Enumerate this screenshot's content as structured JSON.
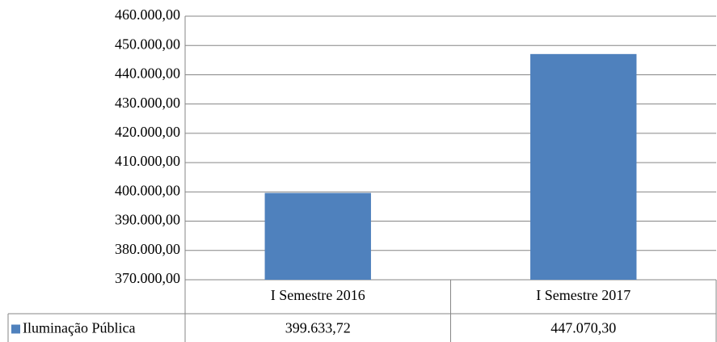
{
  "chart_data": {
    "type": "bar",
    "categories": [
      "I Semestre 2016",
      "I Semestre 2017"
    ],
    "series": [
      {
        "name": "Iluminação Pública",
        "color": "#4f81bd",
        "values": [
          399633.72,
          447070.3
        ],
        "value_labels": [
          "399.633,72",
          "447.070,30"
        ]
      }
    ],
    "ylim": [
      370000,
      460000
    ],
    "yticks": [
      {
        "value": 370000,
        "label": "370.000,00"
      },
      {
        "value": 380000,
        "label": "380.000,00"
      },
      {
        "value": 390000,
        "label": "390.000,00"
      },
      {
        "value": 400000,
        "label": "400.000,00"
      },
      {
        "value": 410000,
        "label": "410.000,00"
      },
      {
        "value": 420000,
        "label": "420.000,00"
      },
      {
        "value": 430000,
        "label": "430.000,00"
      },
      {
        "value": 440000,
        "label": "440.000,00"
      },
      {
        "value": 450000,
        "label": "450.000,00"
      },
      {
        "value": 460000,
        "label": "460.000,00"
      }
    ],
    "grid": true,
    "data_table": true
  }
}
